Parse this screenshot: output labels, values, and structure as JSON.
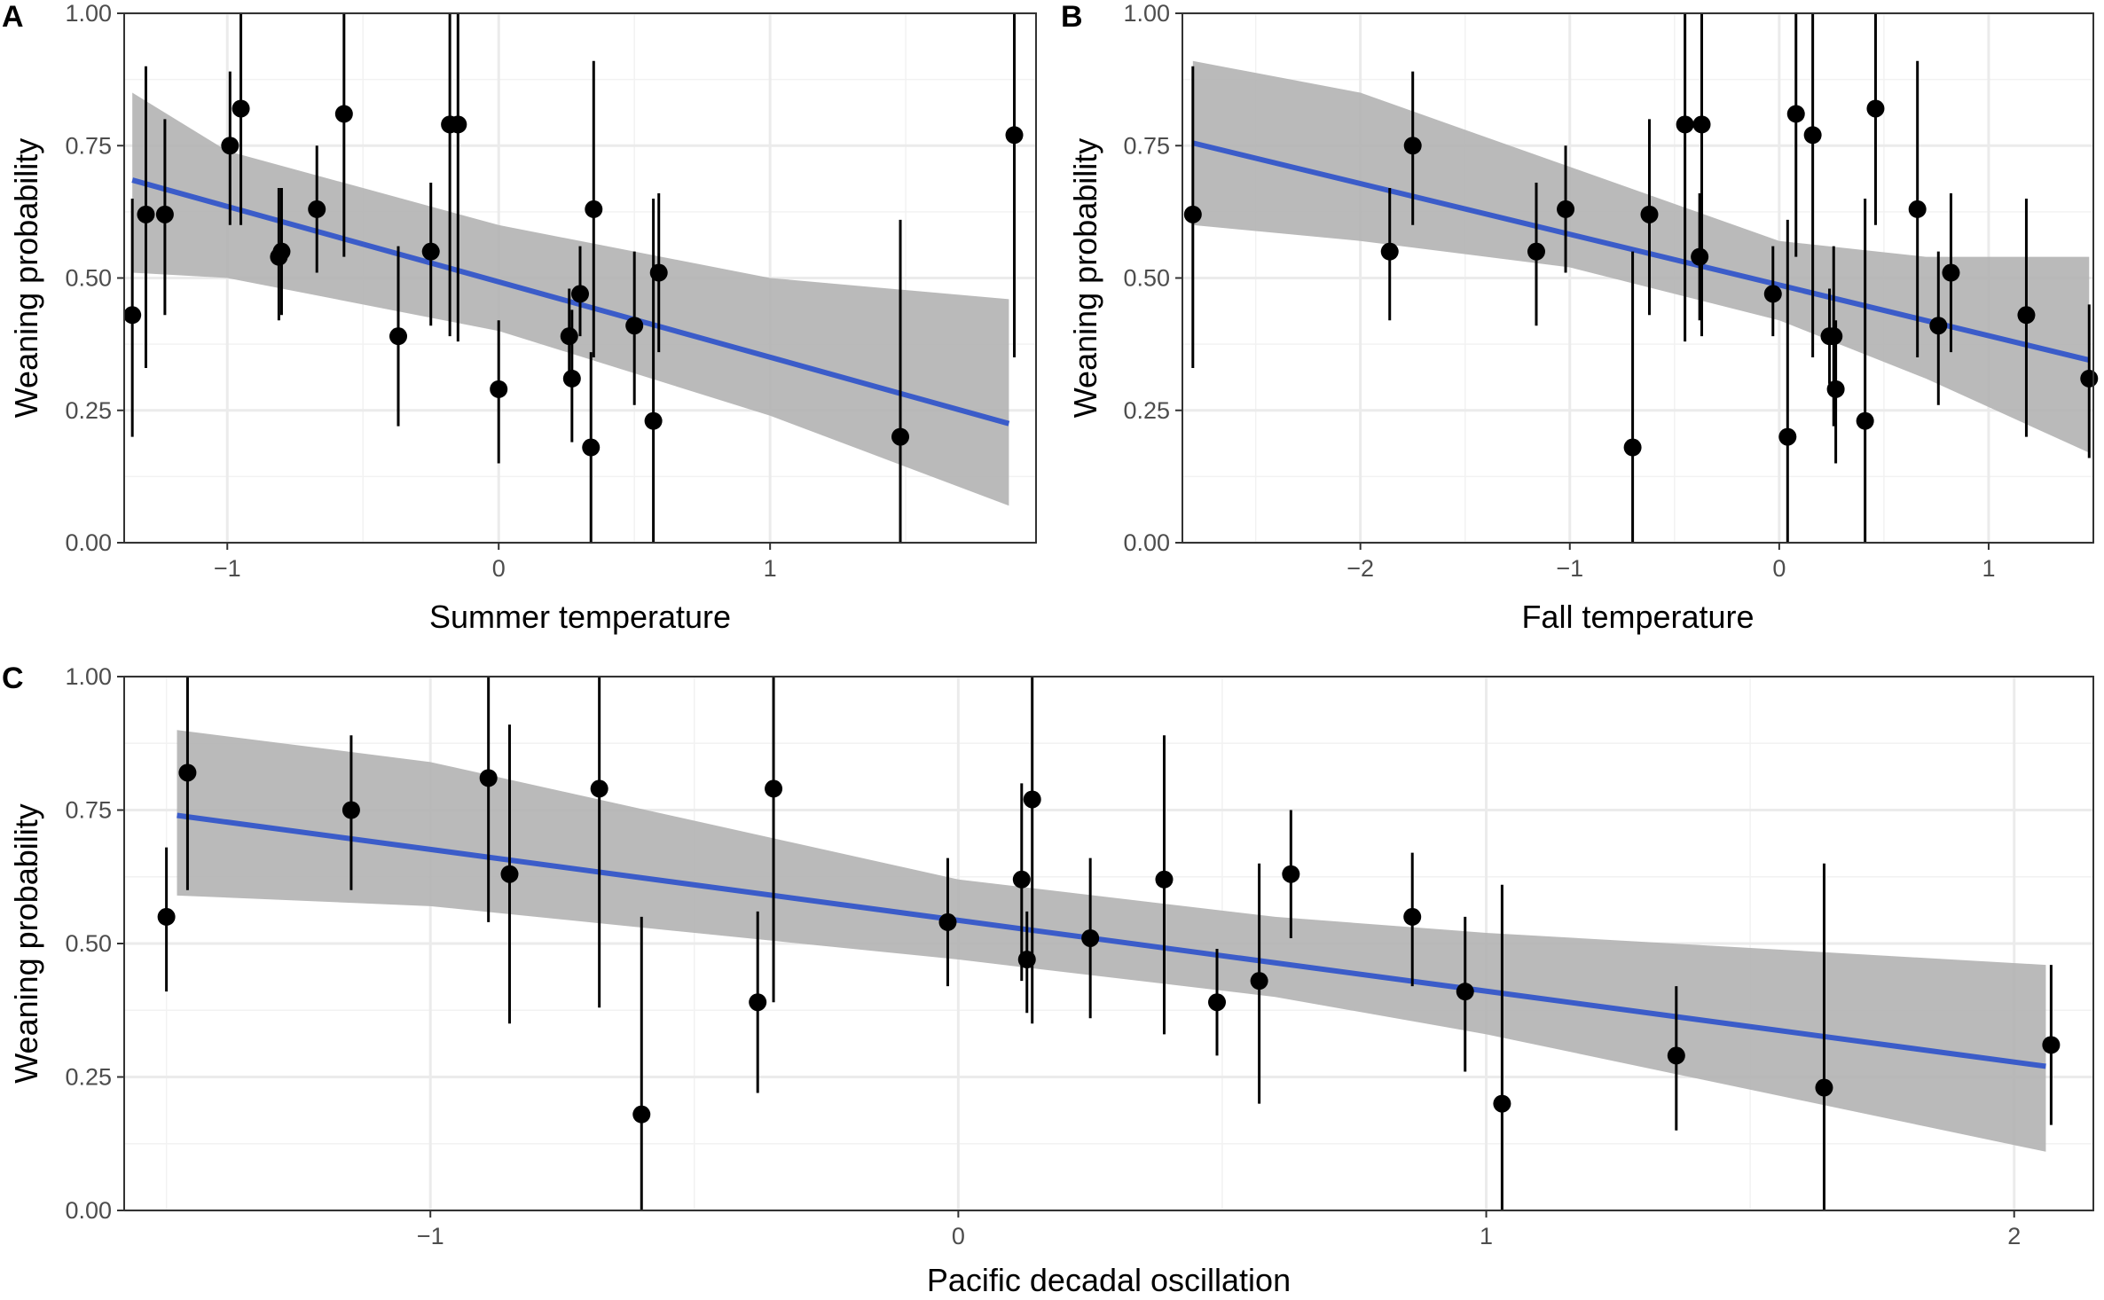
{
  "figure": {
    "panel_labels": [
      "A",
      "B",
      "C"
    ]
  },
  "colors": {
    "fit_line": "#3b5cc9",
    "ribbon": "#b3b3b3",
    "point": "#000000",
    "error_bar": "#000000"
  },
  "chart_data": [
    {
      "type": "scatter",
      "panel": "A",
      "xlabel": "Summer temperature",
      "ylabel": "Weaning probability",
      "xlim": [
        -1.38,
        1.98
      ],
      "ylim": [
        0,
        1
      ],
      "xticks": [
        -1,
        0,
        1
      ],
      "xtick_labels": [
        "−1",
        "0",
        "1"
      ],
      "yticks": [
        0,
        0.25,
        0.5,
        0.75,
        1
      ],
      "ytick_labels": [
        "0.00",
        "0.25",
        "0.50",
        "0.75",
        "1.00"
      ],
      "points": [
        {
          "x": -1.35,
          "y": 0.43,
          "lo": 0.2,
          "hi": 0.65
        },
        {
          "x": -1.3,
          "y": 0.62,
          "lo": 0.33,
          "hi": 0.9
        },
        {
          "x": -1.23,
          "y": 0.62,
          "lo": 0.43,
          "hi": 0.8
        },
        {
          "x": -0.99,
          "y": 0.75,
          "lo": 0.6,
          "hi": 0.89
        },
        {
          "x": -0.95,
          "y": 0.82,
          "lo": 0.6,
          "hi": 1.0
        },
        {
          "x": -0.81,
          "y": 0.54,
          "lo": 0.42,
          "hi": 0.67
        },
        {
          "x": -0.8,
          "y": 0.55,
          "lo": 0.43,
          "hi": 0.67
        },
        {
          "x": -0.67,
          "y": 0.63,
          "lo": 0.51,
          "hi": 0.75
        },
        {
          "x": -0.57,
          "y": 0.81,
          "lo": 0.54,
          "hi": 1.0
        },
        {
          "x": -0.37,
          "y": 0.39,
          "lo": 0.22,
          "hi": 0.56
        },
        {
          "x": -0.25,
          "y": 0.55,
          "lo": 0.41,
          "hi": 0.68
        },
        {
          "x": -0.18,
          "y": 0.79,
          "lo": 0.39,
          "hi": 1.0
        },
        {
          "x": -0.15,
          "y": 0.79,
          "lo": 0.38,
          "hi": 1.0
        },
        {
          "x": 0.0,
          "y": 0.29,
          "lo": 0.15,
          "hi": 0.42
        },
        {
          "x": 0.26,
          "y": 0.39,
          "lo": 0.3,
          "hi": 0.48
        },
        {
          "x": 0.27,
          "y": 0.31,
          "lo": 0.19,
          "hi": 0.44
        },
        {
          "x": 0.3,
          "y": 0.47,
          "lo": 0.39,
          "hi": 0.56
        },
        {
          "x": 0.34,
          "y": 0.18,
          "lo": 0.0,
          "hi": 0.36
        },
        {
          "x": 0.35,
          "y": 0.63,
          "lo": 0.35,
          "hi": 0.91
        },
        {
          "x": 0.5,
          "y": 0.41,
          "lo": 0.26,
          "hi": 0.55
        },
        {
          "x": 0.57,
          "y": 0.23,
          "lo": 0.0,
          "hi": 0.65
        },
        {
          "x": 0.59,
          "y": 0.51,
          "lo": 0.36,
          "hi": 0.66
        },
        {
          "x": 1.48,
          "y": 0.2,
          "lo": 0.0,
          "hi": 0.61
        },
        {
          "x": 1.9,
          "y": 0.77,
          "lo": 0.35,
          "hi": 1.0
        }
      ],
      "fit": {
        "x": [
          -1.35,
          1.88
        ],
        "y": [
          0.685,
          0.225
        ]
      },
      "ribbon": {
        "x": [
          -1.35,
          -1.0,
          0.0,
          1.0,
          1.88
        ],
        "lower": [
          0.51,
          0.5,
          0.4,
          0.24,
          0.07
        ],
        "upper": [
          0.85,
          0.74,
          0.6,
          0.5,
          0.46
        ]
      }
    },
    {
      "type": "scatter",
      "panel": "B",
      "xlabel": "Fall temperature",
      "ylabel": "Weaning probability",
      "xlim": [
        -2.85,
        1.5
      ],
      "ylim": [
        0,
        1
      ],
      "xticks": [
        -2,
        -1,
        0,
        1
      ],
      "xtick_labels": [
        "−2",
        "−1",
        "0",
        "1"
      ],
      "yticks": [
        0,
        0.25,
        0.5,
        0.75,
        1
      ],
      "ytick_labels": [
        "0.00",
        "0.25",
        "0.50",
        "0.75",
        "1.00"
      ],
      "points": [
        {
          "x": -2.8,
          "y": 0.62,
          "lo": 0.33,
          "hi": 0.9
        },
        {
          "x": -1.86,
          "y": 0.55,
          "lo": 0.42,
          "hi": 0.67
        },
        {
          "x": -1.75,
          "y": 0.75,
          "lo": 0.6,
          "hi": 0.89
        },
        {
          "x": -1.16,
          "y": 0.55,
          "lo": 0.41,
          "hi": 0.68
        },
        {
          "x": -1.02,
          "y": 0.63,
          "lo": 0.51,
          "hi": 0.75
        },
        {
          "x": -0.7,
          "y": 0.18,
          "lo": 0.0,
          "hi": 0.55
        },
        {
          "x": -0.62,
          "y": 0.62,
          "lo": 0.43,
          "hi": 0.8
        },
        {
          "x": -0.45,
          "y": 0.79,
          "lo": 0.38,
          "hi": 1.0
        },
        {
          "x": -0.38,
          "y": 0.54,
          "lo": 0.42,
          "hi": 0.66
        },
        {
          "x": -0.37,
          "y": 0.79,
          "lo": 0.39,
          "hi": 1.0
        },
        {
          "x": -0.03,
          "y": 0.47,
          "lo": 0.39,
          "hi": 0.56
        },
        {
          "x": 0.04,
          "y": 0.2,
          "lo": 0.0,
          "hi": 0.61
        },
        {
          "x": 0.08,
          "y": 0.81,
          "lo": 0.54,
          "hi": 1.0
        },
        {
          "x": 0.16,
          "y": 0.77,
          "lo": 0.35,
          "hi": 1.0
        },
        {
          "x": 0.24,
          "y": 0.39,
          "lo": 0.3,
          "hi": 0.48
        },
        {
          "x": 0.26,
          "y": 0.39,
          "lo": 0.22,
          "hi": 0.56
        },
        {
          "x": 0.27,
          "y": 0.29,
          "lo": 0.15,
          "hi": 0.42
        },
        {
          "x": 0.41,
          "y": 0.23,
          "lo": 0.0,
          "hi": 0.65
        },
        {
          "x": 0.46,
          "y": 0.82,
          "lo": 0.6,
          "hi": 1.0
        },
        {
          "x": 0.66,
          "y": 0.63,
          "lo": 0.35,
          "hi": 0.91
        },
        {
          "x": 0.76,
          "y": 0.41,
          "lo": 0.26,
          "hi": 0.55
        },
        {
          "x": 0.82,
          "y": 0.51,
          "lo": 0.36,
          "hi": 0.66
        },
        {
          "x": 1.18,
          "y": 0.43,
          "lo": 0.2,
          "hi": 0.65
        },
        {
          "x": 1.48,
          "y": 0.31,
          "lo": 0.16,
          "hi": 0.45
        }
      ],
      "fit": {
        "x": [
          -2.8,
          1.48
        ],
        "y": [
          0.755,
          0.345
        ]
      },
      "ribbon": {
        "x": [
          -2.8,
          -2.0,
          -1.0,
          0.0,
          0.7,
          1.48
        ],
        "lower": [
          0.6,
          0.57,
          0.52,
          0.42,
          0.31,
          0.17
        ],
        "upper": [
          0.91,
          0.85,
          0.71,
          0.57,
          0.54,
          0.54
        ]
      }
    },
    {
      "type": "scatter",
      "panel": "C",
      "xlabel": "Pacific decadal oscillation",
      "ylabel": "Weaning probability",
      "xlim": [
        -1.58,
        2.15
      ],
      "ylim": [
        0,
        1
      ],
      "xticks": [
        -1,
        0,
        1,
        2
      ],
      "xtick_labels": [
        "−1",
        "0",
        "1",
        "2"
      ],
      "yticks": [
        0,
        0.25,
        0.5,
        0.75,
        1
      ],
      "ytick_labels": [
        "0.00",
        "0.25",
        "0.50",
        "0.75",
        "1.00"
      ],
      "points": [
        {
          "x": -1.5,
          "y": 0.55,
          "lo": 0.41,
          "hi": 0.68
        },
        {
          "x": -1.46,
          "y": 0.82,
          "lo": 0.6,
          "hi": 1.0
        },
        {
          "x": -1.15,
          "y": 0.75,
          "lo": 0.6,
          "hi": 0.89
        },
        {
          "x": -0.89,
          "y": 0.81,
          "lo": 0.54,
          "hi": 1.0
        },
        {
          "x": -0.85,
          "y": 0.63,
          "lo": 0.35,
          "hi": 0.91
        },
        {
          "x": -0.68,
          "y": 0.79,
          "lo": 0.38,
          "hi": 1.0
        },
        {
          "x": -0.6,
          "y": 0.18,
          "lo": 0.0,
          "hi": 0.55
        },
        {
          "x": -0.38,
          "y": 0.39,
          "lo": 0.22,
          "hi": 0.56
        },
        {
          "x": -0.35,
          "y": 0.79,
          "lo": 0.39,
          "hi": 1.0
        },
        {
          "x": -0.02,
          "y": 0.54,
          "lo": 0.42,
          "hi": 0.66
        },
        {
          "x": 0.12,
          "y": 0.62,
          "lo": 0.43,
          "hi": 0.8
        },
        {
          "x": 0.13,
          "y": 0.47,
          "lo": 0.37,
          "hi": 0.56
        },
        {
          "x": 0.14,
          "y": 0.77,
          "lo": 0.35,
          "hi": 1.0
        },
        {
          "x": 0.25,
          "y": 0.51,
          "lo": 0.36,
          "hi": 0.66
        },
        {
          "x": 0.39,
          "y": 0.62,
          "lo": 0.33,
          "hi": 0.89
        },
        {
          "x": 0.49,
          "y": 0.39,
          "lo": 0.29,
          "hi": 0.49
        },
        {
          "x": 0.57,
          "y": 0.43,
          "lo": 0.2,
          "hi": 0.65
        },
        {
          "x": 0.63,
          "y": 0.63,
          "lo": 0.51,
          "hi": 0.75
        },
        {
          "x": 0.86,
          "y": 0.55,
          "lo": 0.42,
          "hi": 0.67
        },
        {
          "x": 0.96,
          "y": 0.41,
          "lo": 0.26,
          "hi": 0.55
        },
        {
          "x": 1.03,
          "y": 0.2,
          "lo": 0.0,
          "hi": 0.61
        },
        {
          "x": 1.36,
          "y": 0.29,
          "lo": 0.15,
          "hi": 0.42
        },
        {
          "x": 1.64,
          "y": 0.23,
          "lo": 0.0,
          "hi": 0.65
        },
        {
          "x": 2.07,
          "y": 0.31,
          "lo": 0.16,
          "hi": 0.46
        }
      ],
      "fit": {
        "x": [
          -1.48,
          2.06
        ],
        "y": [
          0.74,
          0.27
        ]
      },
      "ribbon": {
        "x": [
          -1.48,
          -1.0,
          0.0,
          0.6,
          1.0,
          2.06
        ],
        "lower": [
          0.59,
          0.57,
          0.47,
          0.4,
          0.33,
          0.11
        ],
        "upper": [
          0.9,
          0.84,
          0.62,
          0.55,
          0.52,
          0.46
        ]
      }
    }
  ]
}
